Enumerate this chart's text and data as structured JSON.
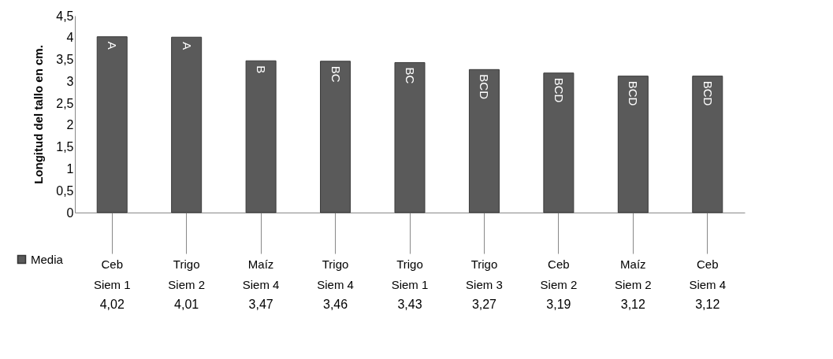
{
  "chart_data": {
    "type": "bar",
    "ylabel": "Longitud del tallo en cm.",
    "categories": [
      "Ceb Siem 1",
      "Trigo Siem 2",
      "Maíz Siem 4",
      "Trigo Siem 4",
      "Trigo Siem 1",
      "Trigo Siem 3",
      "Ceb Siem 2",
      "Maíz Siem 2",
      "Ceb Siem 4"
    ],
    "series": [
      {
        "name": "Media",
        "color": "#5a5a5a",
        "values": [
          4.02,
          4.01,
          3.47,
          3.46,
          3.43,
          3.27,
          3.19,
          3.12,
          3.12
        ],
        "value_labels": [
          "4,02",
          "4,01",
          "3,47",
          "3,46",
          "3,43",
          "3,27",
          "3,19",
          "3,12",
          "3,12"
        ]
      }
    ],
    "ylim": [
      0,
      4.5
    ],
    "yticks": [
      0,
      {
        "value": 0.5,
        "label": "0,5"
      },
      1,
      {
        "value": 1.5,
        "label": "1,5"
      },
      2,
      {
        "value": 2.5,
        "label": "2,5"
      },
      3,
      {
        "value": 3.5,
        "label": "3,5"
      },
      4,
      {
        "value": 4.5,
        "label": "4,5"
      }
    ],
    "grid": false,
    "legend": "bottom left",
    "annotations": [
      {
        "text": "A",
        "x": "Ceb Siem 1",
        "y": 4.02
      },
      {
        "text": "A",
        "x": "Trigo Siem 2",
        "y": 4.01
      },
      {
        "text": "B",
        "x": "Maíz Siem 4",
        "y": 3.47
      },
      {
        "text": "BC",
        "x": "Trigo Siem 4",
        "y": 3.46
      },
      {
        "text": "BC",
        "x": "Trigo Siem 1",
        "y": 3.43
      },
      {
        "text": "BCD",
        "x": "Trigo Siem 3",
        "y": 3.27
      },
      {
        "text": "BCD",
        "x": "Ceb Siem 2",
        "y": 3.19
      },
      {
        "text": "BCD",
        "x": "Maíz Siem 2",
        "y": 3.12
      },
      {
        "text": "BCD",
        "x": "Ceb Siem 4",
        "y": 3.12
      }
    ]
  }
}
